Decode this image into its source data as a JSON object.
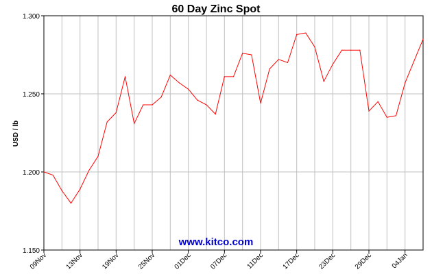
{
  "chart_data": {
    "type": "line",
    "title": "60 Day Zinc Spot",
    "ylabel": "USD / lb",
    "xlabel": "",
    "watermark": "www.kitco.com",
    "ylim": [
      1.15,
      1.3
    ],
    "yticks": [
      1.15,
      1.2,
      1.25,
      1.3
    ],
    "ytick_labels": [
      "1.150",
      "1.200",
      "1.250",
      "1.300"
    ],
    "grid": true,
    "xticks": [
      {
        "label": "09Nov",
        "index": 0
      },
      {
        "label": "13Nov",
        "index": 4
      },
      {
        "label": "19Nov",
        "index": 8
      },
      {
        "label": "25Nov",
        "index": 12
      },
      {
        "label": "01Dec",
        "index": 16
      },
      {
        "label": "07Dec",
        "index": 20
      },
      {
        "label": "11Dec",
        "index": 24
      },
      {
        "label": "17Dec",
        "index": 28
      },
      {
        "label": "23Dec",
        "index": 32
      },
      {
        "label": "29Dec",
        "index": 36
      },
      {
        "label": "04Jan",
        "index": 40
      }
    ],
    "series": [
      {
        "color": "#ff0000",
        "values": [
          1.2,
          1.198,
          1.188,
          1.18,
          1.189,
          1.201,
          1.21,
          1.232,
          1.238,
          1.261,
          1.231,
          1.243,
          1.243,
          1.248,
          1.262,
          1.257,
          1.253,
          1.246,
          1.243,
          1.237,
          1.261,
          1.261,
          1.276,
          1.275,
          1.244,
          1.266,
          1.272,
          1.27,
          1.288,
          1.289,
          1.28,
          1.258,
          1.269,
          1.278,
          1.278,
          1.278,
          1.239,
          1.245,
          1.235,
          1.236,
          1.257,
          1.271,
          1.285
        ]
      }
    ]
  },
  "colors": {
    "grid": "#c0c0c0",
    "axis": "#000000",
    "watermark": "#0000cc"
  }
}
